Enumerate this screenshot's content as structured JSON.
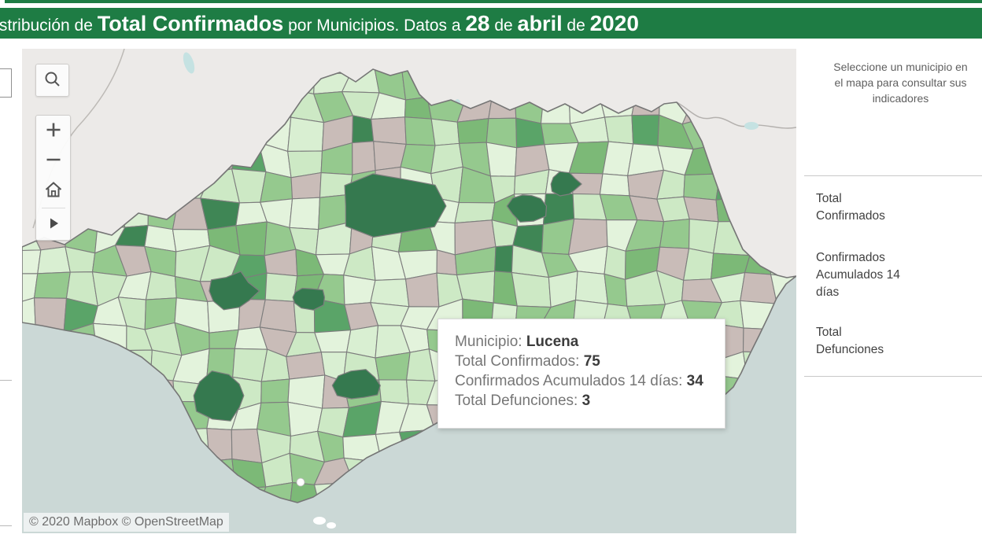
{
  "header": {
    "title_prefix": "Distribución de ",
    "title_metric": "Total Confirmados",
    "title_middle": " por Municipios. Datos a ",
    "date_day": "28",
    "de1": " de ",
    "date_month": "abril",
    "de2": " de ",
    "date_year": "2020"
  },
  "map": {
    "tooltip": {
      "rows": [
        {
          "label": "Municipio: ",
          "value": "Lucena"
        },
        {
          "label": "Total Confirmados: ",
          "value": "75"
        },
        {
          "label": "Confirmados Acumulados 14 días: ",
          "value": "34"
        },
        {
          "label": "Total Defunciones: ",
          "value": "3"
        }
      ]
    },
    "attribution": "© 2020 Mapbox © OpenStreetMap"
  },
  "sidebar": {
    "instruction": "Seleccione un municipio en\nel mapa para consultar sus\nindicadores",
    "indicators": [
      "Total\nConfirmados",
      "Confirmados\nAcumulados 14\ndías",
      "Total\nDefunciones"
    ]
  },
  "colors": {
    "header_green": "#1e7c44",
    "sea": "#cbd8d6",
    "land": "#eceae8",
    "region_border": "#767676",
    "cell_border": "#7d7d7d",
    "dark_green": "#35794f",
    "lake": "#c5e2e2",
    "palette": [
      "#e3f3dc",
      "#cde9c5",
      "#d9efd2",
      "#95c98e",
      "#7cb977",
      "#5aa468",
      "#3f8655",
      "#c9bcb8"
    ]
  }
}
